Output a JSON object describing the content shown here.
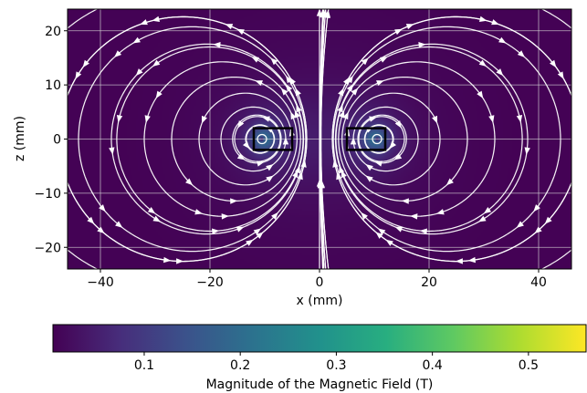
{
  "chart_data": {
    "type": "heatmap",
    "title": "",
    "xlabel": "x (mm)",
    "ylabel": "z (mm)",
    "xlim": [
      -46,
      46
    ],
    "ylim": [
      -24,
      24
    ],
    "x_ticks": [
      -40,
      -20,
      0,
      20,
      40
    ],
    "y_ticks": [
      -20,
      -10,
      0,
      10,
      20
    ],
    "x_tick_labels": [
      "−40",
      "−20",
      "0",
      "20",
      "40"
    ],
    "y_tick_labels": [
      "−20",
      "−10",
      "0",
      "10",
      "20"
    ],
    "grid": true,
    "overlay": "streamlines",
    "colormap": "viridis",
    "colorbar": {
      "label": "Magnitude of the Magnetic Field (T)",
      "orientation": "horizontal",
      "location": "bottom",
      "range": [
        0.005,
        0.56
      ],
      "ticks": [
        0.1,
        0.2,
        0.3,
        0.4,
        0.5
      ],
      "tick_labels": [
        "0.1",
        "0.2",
        "0.3",
        "0.4",
        "0.5"
      ]
    },
    "coil_cross_sections": [
      {
        "x_min": -12,
        "x_max": -5,
        "z_min": -2,
        "z_max": 2
      },
      {
        "x_min": 5,
        "x_max": 12,
        "z_min": -2,
        "z_max": 2
      }
    ],
    "loop_centers": [
      {
        "x": -10.5,
        "z": 0
      },
      {
        "x": 10.5,
        "z": 0
      }
    ]
  }
}
